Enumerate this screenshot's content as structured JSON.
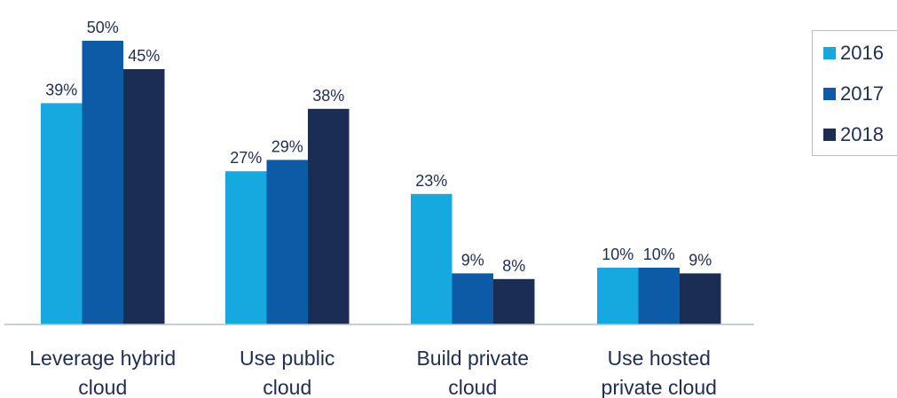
{
  "chart_data": {
    "type": "bar",
    "categories": [
      [
        "Leverage hybrid",
        "cloud"
      ],
      [
        "Use public",
        "cloud"
      ],
      [
        "Build private",
        "cloud"
      ],
      [
        "Use hosted",
        "private cloud"
      ]
    ],
    "series": [
      {
        "name": "2016",
        "color": "#15a9e0",
        "values": [
          39,
          27,
          23,
          10
        ]
      },
      {
        "name": "2017",
        "color": "#0d5aa7",
        "values": [
          50,
          29,
          9,
          10
        ]
      },
      {
        "name": "2018",
        "color": "#1c2d55",
        "values": [
          45,
          38,
          8,
          9
        ]
      }
    ],
    "value_suffix": "%",
    "ylim": [
      0,
      50
    ],
    "legend": "right",
    "grid": false
  }
}
